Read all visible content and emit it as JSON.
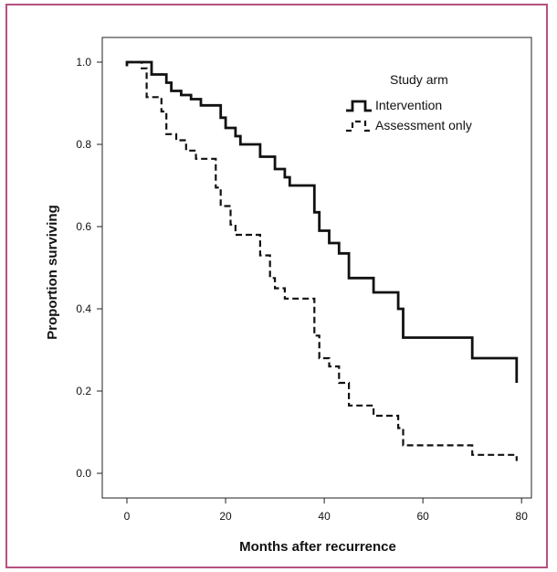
{
  "chart_data": {
    "type": "line",
    "subtype": "kaplan-meier step",
    "xlabel": "Months after recurrence",
    "ylabel": "Proportion surviving",
    "xlim": [
      -5,
      82
    ],
    "ylim": [
      -0.06,
      1.06
    ],
    "xticks": [
      "0",
      "20",
      "40",
      "60",
      "80"
    ],
    "yticks": [
      "0.0",
      "0.2",
      "0.4",
      "0.6",
      "0.8",
      "1.0"
    ],
    "grid": false,
    "legend": {
      "title": "Study arm",
      "position": "top-right"
    },
    "series": [
      {
        "name": "Intervention",
        "line_style": "solid",
        "color": "#111111",
        "steps": [
          [
            0,
            0.99
          ],
          [
            0,
            1.0
          ],
          [
            5,
            1.0
          ],
          [
            5,
            0.97
          ],
          [
            8,
            0.97
          ],
          [
            8,
            0.95
          ],
          [
            9,
            0.95
          ],
          [
            9,
            0.93
          ],
          [
            11,
            0.93
          ],
          [
            11,
            0.92
          ],
          [
            13,
            0.92
          ],
          [
            13,
            0.91
          ],
          [
            15,
            0.91
          ],
          [
            15,
            0.895
          ],
          [
            19,
            0.895
          ],
          [
            19,
            0.865
          ],
          [
            20,
            0.865
          ],
          [
            20,
            0.84
          ],
          [
            22,
            0.84
          ],
          [
            22,
            0.82
          ],
          [
            23,
            0.82
          ],
          [
            23,
            0.8
          ],
          [
            27,
            0.8
          ],
          [
            27,
            0.77
          ],
          [
            30,
            0.77
          ],
          [
            30,
            0.74
          ],
          [
            32,
            0.74
          ],
          [
            32,
            0.72
          ],
          [
            33,
            0.72
          ],
          [
            33,
            0.7
          ],
          [
            38,
            0.7
          ],
          [
            38,
            0.635
          ],
          [
            39,
            0.635
          ],
          [
            39,
            0.59
          ],
          [
            41,
            0.59
          ],
          [
            41,
            0.56
          ],
          [
            43,
            0.56
          ],
          [
            43,
            0.535
          ],
          [
            45,
            0.535
          ],
          [
            45,
            0.475
          ],
          [
            50,
            0.475
          ],
          [
            50,
            0.44
          ],
          [
            55,
            0.44
          ],
          [
            55,
            0.4
          ],
          [
            56,
            0.4
          ],
          [
            56,
            0.33
          ],
          [
            70,
            0.33
          ],
          [
            70,
            0.28
          ],
          [
            79,
            0.28
          ],
          [
            79,
            0.22
          ]
        ]
      },
      {
        "name": "Assessment only",
        "line_style": "dashed",
        "color": "#111111",
        "steps": [
          [
            0,
            1.0
          ],
          [
            3,
            1.0
          ],
          [
            3,
            0.985
          ],
          [
            4,
            0.985
          ],
          [
            4,
            0.915
          ],
          [
            7,
            0.915
          ],
          [
            7,
            0.88
          ],
          [
            8,
            0.88
          ],
          [
            8,
            0.825
          ],
          [
            10,
            0.825
          ],
          [
            10,
            0.81
          ],
          [
            12,
            0.81
          ],
          [
            12,
            0.785
          ],
          [
            14,
            0.785
          ],
          [
            14,
            0.765
          ],
          [
            18,
            0.765
          ],
          [
            18,
            0.695
          ],
          [
            19,
            0.695
          ],
          [
            19,
            0.65
          ],
          [
            21,
            0.65
          ],
          [
            21,
            0.605
          ],
          [
            22,
            0.605
          ],
          [
            22,
            0.58
          ],
          [
            27,
            0.58
          ],
          [
            27,
            0.53
          ],
          [
            29,
            0.53
          ],
          [
            29,
            0.475
          ],
          [
            30,
            0.475
          ],
          [
            30,
            0.45
          ],
          [
            32,
            0.45
          ],
          [
            32,
            0.425
          ],
          [
            38,
            0.425
          ],
          [
            38,
            0.335
          ],
          [
            39,
            0.335
          ],
          [
            39,
            0.28
          ],
          [
            41,
            0.28
          ],
          [
            41,
            0.26
          ],
          [
            43,
            0.26
          ],
          [
            43,
            0.22
          ],
          [
            45,
            0.22
          ],
          [
            45,
            0.165
          ],
          [
            50,
            0.165
          ],
          [
            50,
            0.14
          ],
          [
            55,
            0.14
          ],
          [
            55,
            0.11
          ],
          [
            56,
            0.11
          ],
          [
            56,
            0.068
          ],
          [
            70,
            0.068
          ],
          [
            70,
            0.045
          ],
          [
            79,
            0.045
          ],
          [
            79,
            0.03
          ]
        ]
      }
    ]
  }
}
